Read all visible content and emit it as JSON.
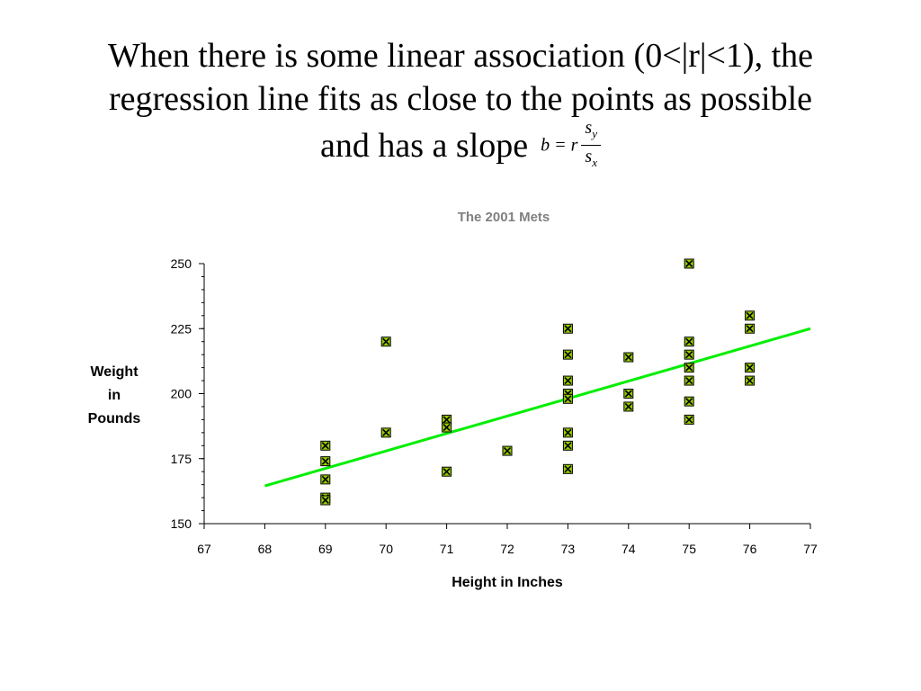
{
  "slide": {
    "heading_lines": [
      "When there is some linear association (0<|r|<1), the",
      "regression line fits as close to the points as possible",
      "and has a slope"
    ],
    "formula": {
      "lhs": "b = r",
      "numerator": "s",
      "numerator_sub": "y",
      "denominator": "s",
      "denominator_sub": "x"
    }
  },
  "chart_data": {
    "type": "scatter",
    "title": "The 2001 Mets",
    "xlabel": "Height in Inches",
    "ylabel_lines": [
      "Weight",
      "in",
      "Pounds"
    ],
    "xlim": [
      67,
      77
    ],
    "ylim": [
      150,
      250
    ],
    "x_ticks": [
      67,
      68,
      69,
      70,
      71,
      72,
      73,
      74,
      75,
      76,
      77
    ],
    "y_ticks": [
      150,
      175,
      200,
      225,
      250
    ],
    "y_minor_step": 5,
    "grid": false,
    "marker": "x-in-square",
    "colors": {
      "marker_fill": "#99cc00",
      "marker_edge": "#000000",
      "line": "#00ee00",
      "title": "#808080"
    },
    "points": [
      {
        "x": 69,
        "y": 180
      },
      {
        "x": 69,
        "y": 174
      },
      {
        "x": 69,
        "y": 167
      },
      {
        "x": 69,
        "y": 160
      },
      {
        "x": 69,
        "y": 159
      },
      {
        "x": 70,
        "y": 220
      },
      {
        "x": 70,
        "y": 185
      },
      {
        "x": 71,
        "y": 190
      },
      {
        "x": 71,
        "y": 187
      },
      {
        "x": 71,
        "y": 170
      },
      {
        "x": 72,
        "y": 178
      },
      {
        "x": 73,
        "y": 225
      },
      {
        "x": 73,
        "y": 215
      },
      {
        "x": 73,
        "y": 205
      },
      {
        "x": 73,
        "y": 200
      },
      {
        "x": 73,
        "y": 198
      },
      {
        "x": 73,
        "y": 185
      },
      {
        "x": 73,
        "y": 180
      },
      {
        "x": 73,
        "y": 171
      },
      {
        "x": 74,
        "y": 214
      },
      {
        "x": 74,
        "y": 200
      },
      {
        "x": 74,
        "y": 195
      },
      {
        "x": 75,
        "y": 250
      },
      {
        "x": 75,
        "y": 220
      },
      {
        "x": 75,
        "y": 215
      },
      {
        "x": 75,
        "y": 210
      },
      {
        "x": 75,
        "y": 205
      },
      {
        "x": 75,
        "y": 197
      },
      {
        "x": 75,
        "y": 190
      },
      {
        "x": 76,
        "y": 230
      },
      {
        "x": 76,
        "y": 225
      },
      {
        "x": 76,
        "y": 210
      },
      {
        "x": 76,
        "y": 205
      }
    ],
    "regression_line": {
      "x1": 68,
      "y1": 164.5,
      "x2": 77,
      "y2": 225
    }
  }
}
